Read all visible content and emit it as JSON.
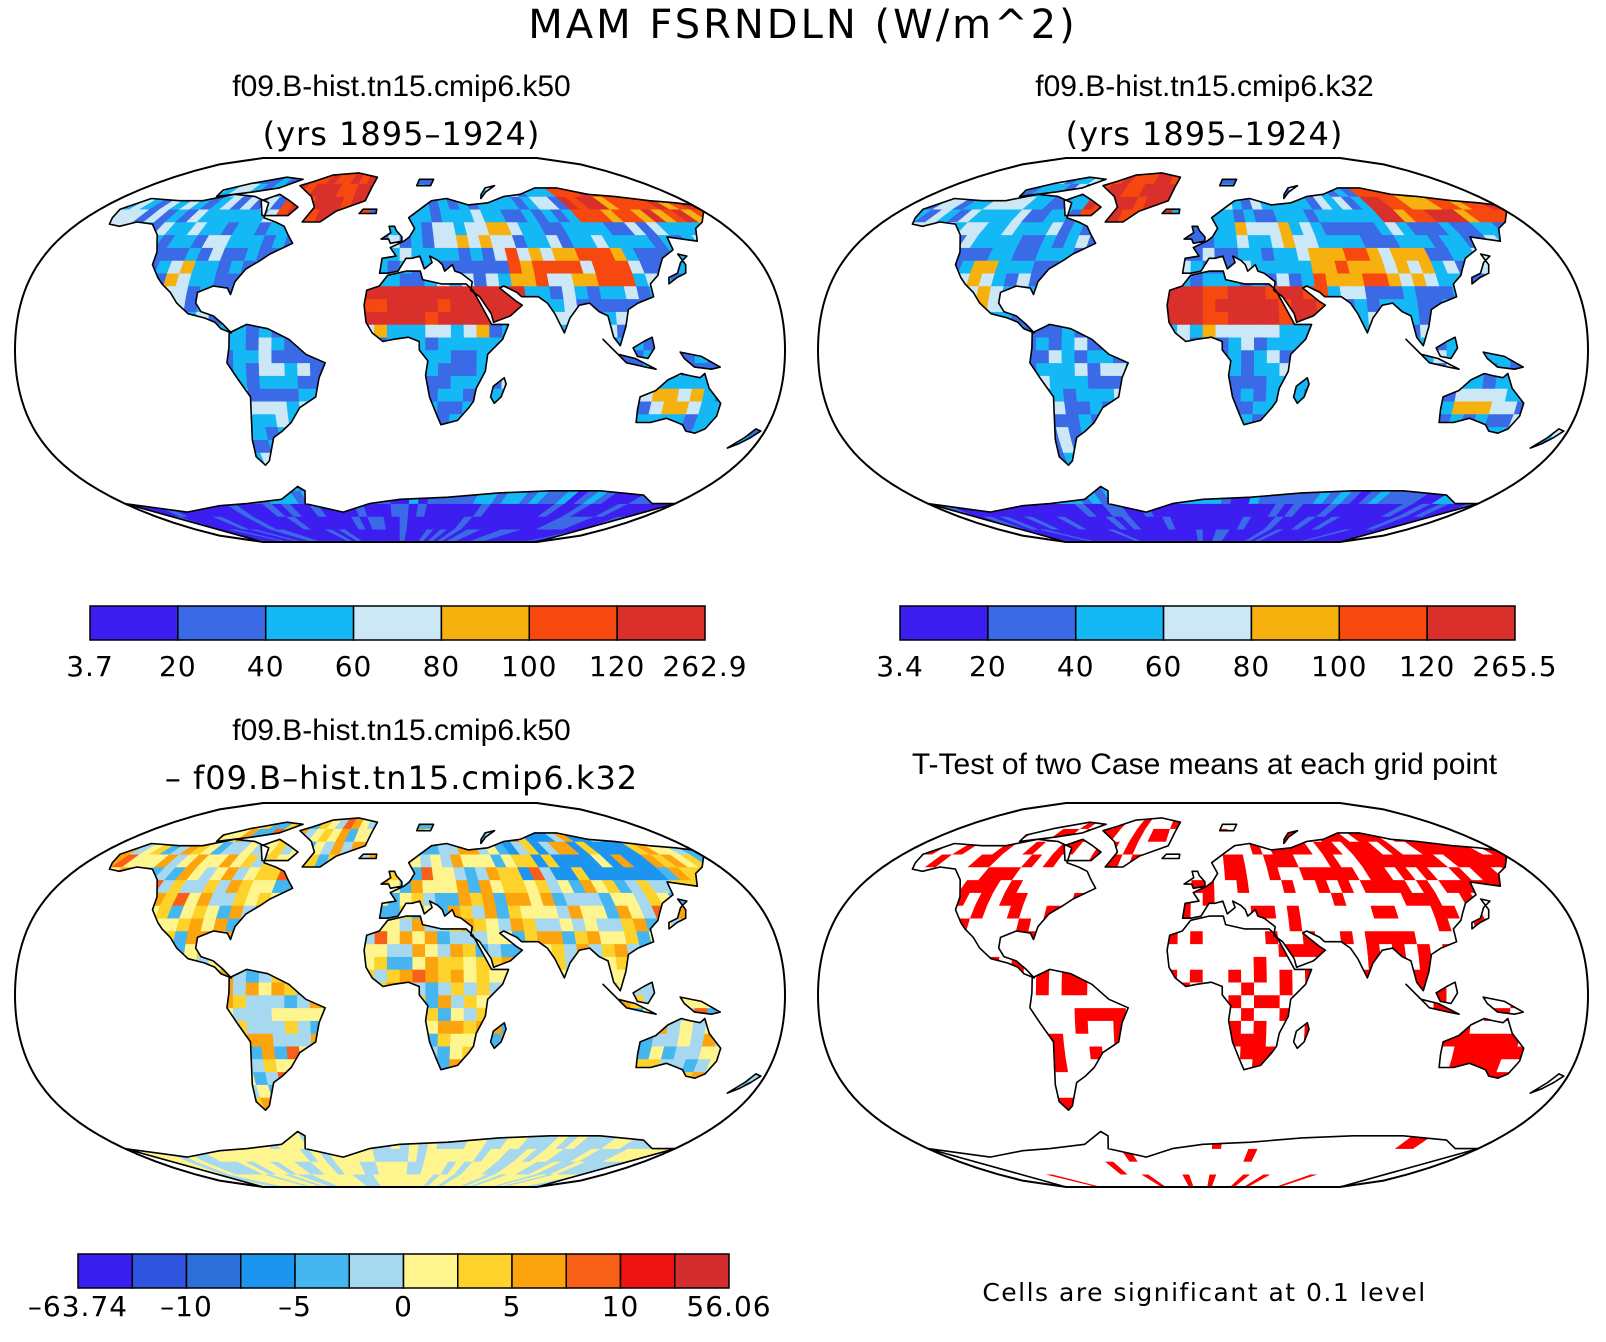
{
  "title": "MAM FSRNDLN (W/m^2)",
  "panels": [
    {
      "id": "k50",
      "title": "f09.B-hist.tn15.cmip6.k50",
      "subtitle": "(yrs 1895–1924)",
      "colorbar": {
        "colors": [
          "#3c1ff0",
          "#3a6ae6",
          "#14b8f5",
          "#cce7f5",
          "#f7b10e",
          "#f6480f",
          "#d9302b"
        ],
        "labels": [
          "3.7",
          "20",
          "40",
          "60",
          "80",
          "100",
          "120",
          "262.9"
        ]
      }
    },
    {
      "id": "k32",
      "title": "f09.B-hist.tn15.cmip6.k32",
      "subtitle": "(yrs 1895–1924)",
      "colorbar": {
        "colors": [
          "#3c1ff0",
          "#3a6ae6",
          "#14b8f5",
          "#cce7f5",
          "#f7b10e",
          "#f6480f",
          "#d9302b"
        ],
        "labels": [
          "3.4",
          "20",
          "40",
          "60",
          "80",
          "100",
          "120",
          "265.5"
        ]
      }
    },
    {
      "id": "diff",
      "title": "f09.B-hist.tn15.cmip6.k50",
      "subtitle": "– f09.B–hist.tn15.cmip6.k32",
      "colorbar": {
        "colors": [
          "#3a1ef0",
          "#2f55e0",
          "#2c6fd9",
          "#1b95f0",
          "#45b6f0",
          "#a6d8f0",
          "#fff58e",
          "#fdd22a",
          "#fca40e",
          "#f86018",
          "#ee1212",
          "#d42d2d"
        ],
        "labels": [
          "–63.74",
          "–10",
          "–5",
          "0",
          "5",
          "10",
          "56.06"
        ]
      }
    },
    {
      "id": "ttest",
      "title": "T-Test of two Case means at each grid point",
      "note": "Cells are significant at 0.1 level",
      "sig_color": "#ff0000"
    }
  ]
}
